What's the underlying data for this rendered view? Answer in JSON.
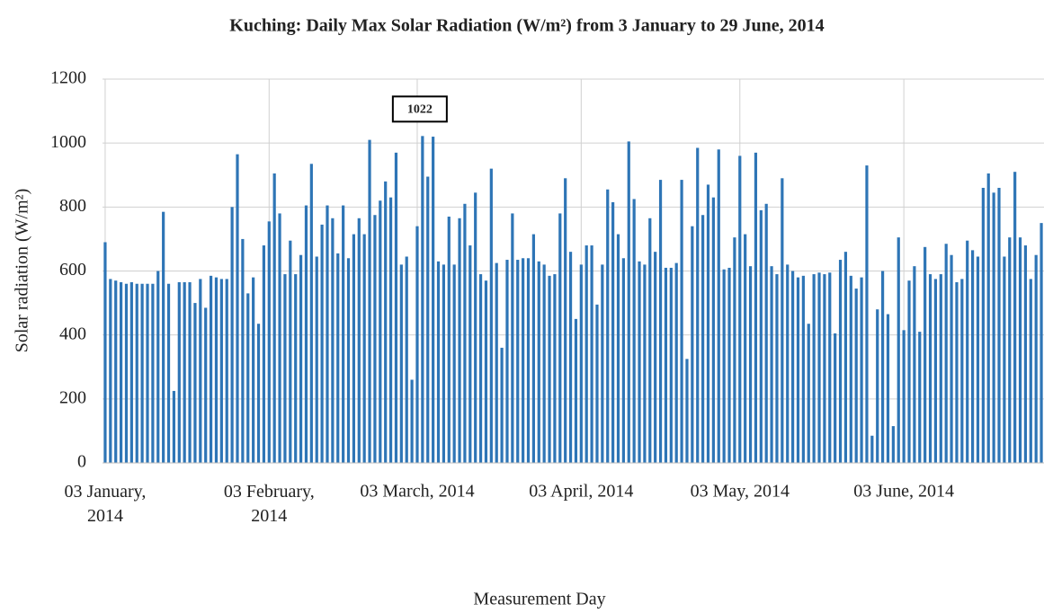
{
  "chart_data": {
    "type": "bar",
    "title": "Kuching: Daily Max Solar Radiation (W/m²) from 3 January to 29 June, 2014",
    "x_label": "Measurement Day",
    "y_label": "Solar radiation (W/m²)",
    "annotation": "1022",
    "color": "#2e75b6",
    "grid": true,
    "ylim": [
      0,
      1200
    ],
    "yticks": [
      0,
      200,
      400,
      600,
      800,
      1000,
      1200
    ],
    "categories": [
      "03 January, 2014",
      null,
      null,
      null,
      null,
      null,
      null,
      null,
      null,
      null,
      null,
      null,
      null,
      null,
      null,
      null,
      null,
      null,
      null,
      null,
      null,
      null,
      null,
      null,
      null,
      null,
      null,
      null,
      null,
      null,
      null,
      "03 February, 2014",
      null,
      null,
      null,
      null,
      null,
      null,
      null,
      null,
      null,
      null,
      null,
      null,
      null,
      null,
      null,
      null,
      null,
      null,
      null,
      null,
      null,
      null,
      null,
      null,
      null,
      null,
      null,
      "03 March, 2014",
      null,
      null,
      null,
      null,
      null,
      null,
      null,
      null,
      null,
      null,
      null,
      null,
      null,
      null,
      null,
      null,
      null,
      null,
      null,
      null,
      null,
      null,
      null,
      null,
      null,
      null,
      null,
      null,
      null,
      null,
      "03 April, 2014",
      null,
      null,
      null,
      null,
      null,
      null,
      null,
      null,
      null,
      null,
      null,
      null,
      null,
      null,
      null,
      null,
      null,
      null,
      null,
      null,
      null,
      null,
      null,
      null,
      null,
      null,
      null,
      null,
      null,
      "03 May, 2014",
      null,
      null,
      null,
      null,
      null,
      null,
      null,
      null,
      null,
      null,
      null,
      null,
      null,
      null,
      null,
      null,
      null,
      null,
      null,
      null,
      null,
      null,
      null,
      null,
      null,
      null,
      null,
      null,
      null,
      null,
      "03 June, 2014",
      null,
      null,
      null,
      null,
      null,
      null,
      null,
      null,
      null,
      null,
      null,
      null,
      null,
      null,
      null,
      null,
      null,
      null,
      null,
      null,
      null,
      null,
      null,
      null,
      null,
      null
    ],
    "values": [
      690,
      575,
      570,
      565,
      560,
      565,
      560,
      560,
      560,
      560,
      600,
      785,
      560,
      225,
      565,
      565,
      565,
      500,
      575,
      485,
      585,
      580,
      575,
      575,
      800,
      965,
      700,
      530,
      580,
      435,
      680,
      755,
      905,
      780,
      590,
      695,
      590,
      650,
      805,
      935,
      645,
      745,
      805,
      765,
      655,
      805,
      640,
      715,
      765,
      715,
      1010,
      775,
      820,
      880,
      830,
      970,
      620,
      645,
      260,
      740,
      1022,
      895,
      1020,
      630,
      620,
      770,
      620,
      765,
      810,
      680,
      845,
      590,
      570,
      920,
      625,
      360,
      635,
      780,
      635,
      640,
      640,
      715,
      630,
      620,
      585,
      590,
      780,
      890,
      660,
      450,
      620,
      680,
      680,
      495,
      620,
      855,
      815,
      715,
      640,
      1005,
      825,
      630,
      620,
      765,
      660,
      885,
      610,
      610,
      625,
      885,
      325,
      740,
      985,
      775,
      870,
      830,
      980,
      605,
      610,
      705,
      960,
      715,
      615,
      970,
      790,
      810,
      615,
      590,
      890,
      620,
      600,
      580,
      585,
      435,
      590,
      595,
      590,
      595,
      405,
      635,
      660,
      585,
      545,
      580,
      930,
      85,
      480,
      600,
      465,
      115,
      705,
      415,
      570,
      615,
      410,
      675,
      590,
      575,
      590,
      685,
      650,
      565,
      575,
      695,
      665,
      645,
      860,
      905,
      845,
      860,
      645,
      705,
      910,
      705,
      680,
      575,
      650,
      750
    ]
  }
}
